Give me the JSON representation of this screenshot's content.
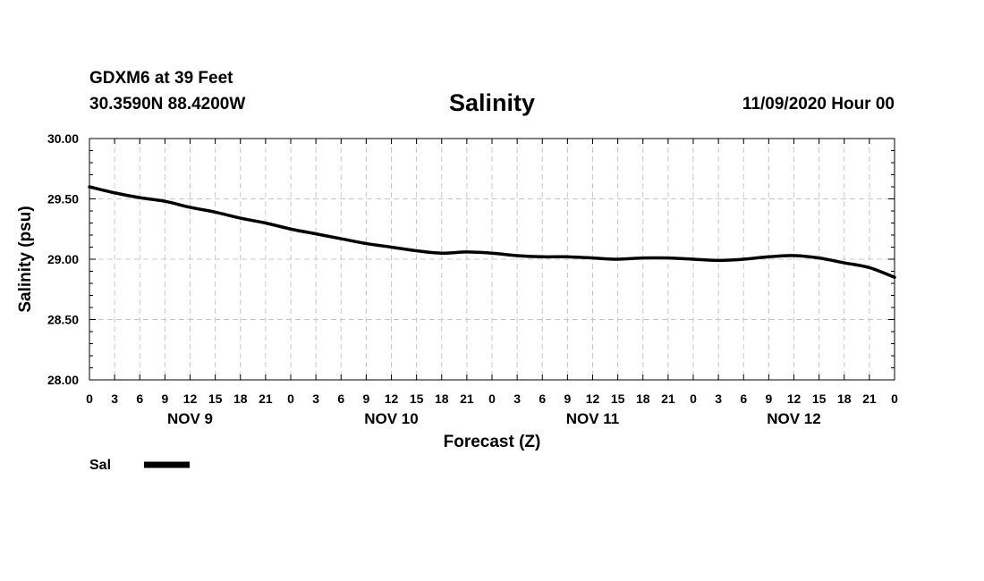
{
  "header": {
    "station": "GDXM6 at 39 Feet",
    "coords": "30.3590N 88.4200W",
    "run": "11/09/2020 Hour 00"
  },
  "colors": {
    "line": "#000000",
    "grid": "#c8c8c8",
    "axis": "#000000"
  },
  "chart_data": {
    "type": "line",
    "title": "Salinity",
    "xlabel": "Forecast (Z)",
    "ylabel": "Salinity (psu)",
    "ylim": [
      28.0,
      30.0
    ],
    "xlim": [
      0,
      96
    ],
    "grid": true,
    "y_ticks": [
      {
        "value": 28.0,
        "label": "28.00"
      },
      {
        "value": 28.5,
        "label": "28.50"
      },
      {
        "value": 29.0,
        "label": "29.00"
      },
      {
        "value": 29.5,
        "label": "29.50"
      },
      {
        "value": 30.0,
        "label": "30.00"
      }
    ],
    "x_ticks": [
      "0",
      "3",
      "6",
      "9",
      "12",
      "15",
      "18",
      "21",
      "0",
      "3",
      "6",
      "9",
      "12",
      "15",
      "18",
      "21",
      "0",
      "3",
      "6",
      "9",
      "12",
      "15",
      "18",
      "21",
      "0",
      "3",
      "6",
      "9",
      "12",
      "15",
      "18",
      "21",
      "0"
    ],
    "x_tick_step_hours": 3,
    "date_labels": [
      {
        "hour": 12,
        "label": "NOV 9"
      },
      {
        "hour": 36,
        "label": "NOV 10"
      },
      {
        "hour": 60,
        "label": "NOV 11"
      },
      {
        "hour": 84,
        "label": "NOV 12"
      }
    ],
    "legend": {
      "label": "Sal",
      "position": "bottom-left"
    },
    "series": [
      {
        "name": "Sal",
        "x": [
          0,
          3,
          6,
          9,
          12,
          15,
          18,
          21,
          24,
          27,
          30,
          33,
          36,
          39,
          42,
          45,
          48,
          51,
          54,
          57,
          60,
          63,
          66,
          69,
          72,
          75,
          78,
          81,
          84,
          87,
          90,
          93,
          96
        ],
        "values": [
          29.6,
          29.55,
          29.51,
          29.48,
          29.43,
          29.39,
          29.34,
          29.3,
          29.25,
          29.21,
          29.17,
          29.13,
          29.1,
          29.07,
          29.05,
          29.06,
          29.05,
          29.03,
          29.02,
          29.02,
          29.01,
          29.0,
          29.01,
          29.01,
          29.0,
          28.99,
          29.0,
          29.02,
          29.03,
          29.01,
          28.97,
          28.93,
          28.85
        ]
      }
    ]
  }
}
